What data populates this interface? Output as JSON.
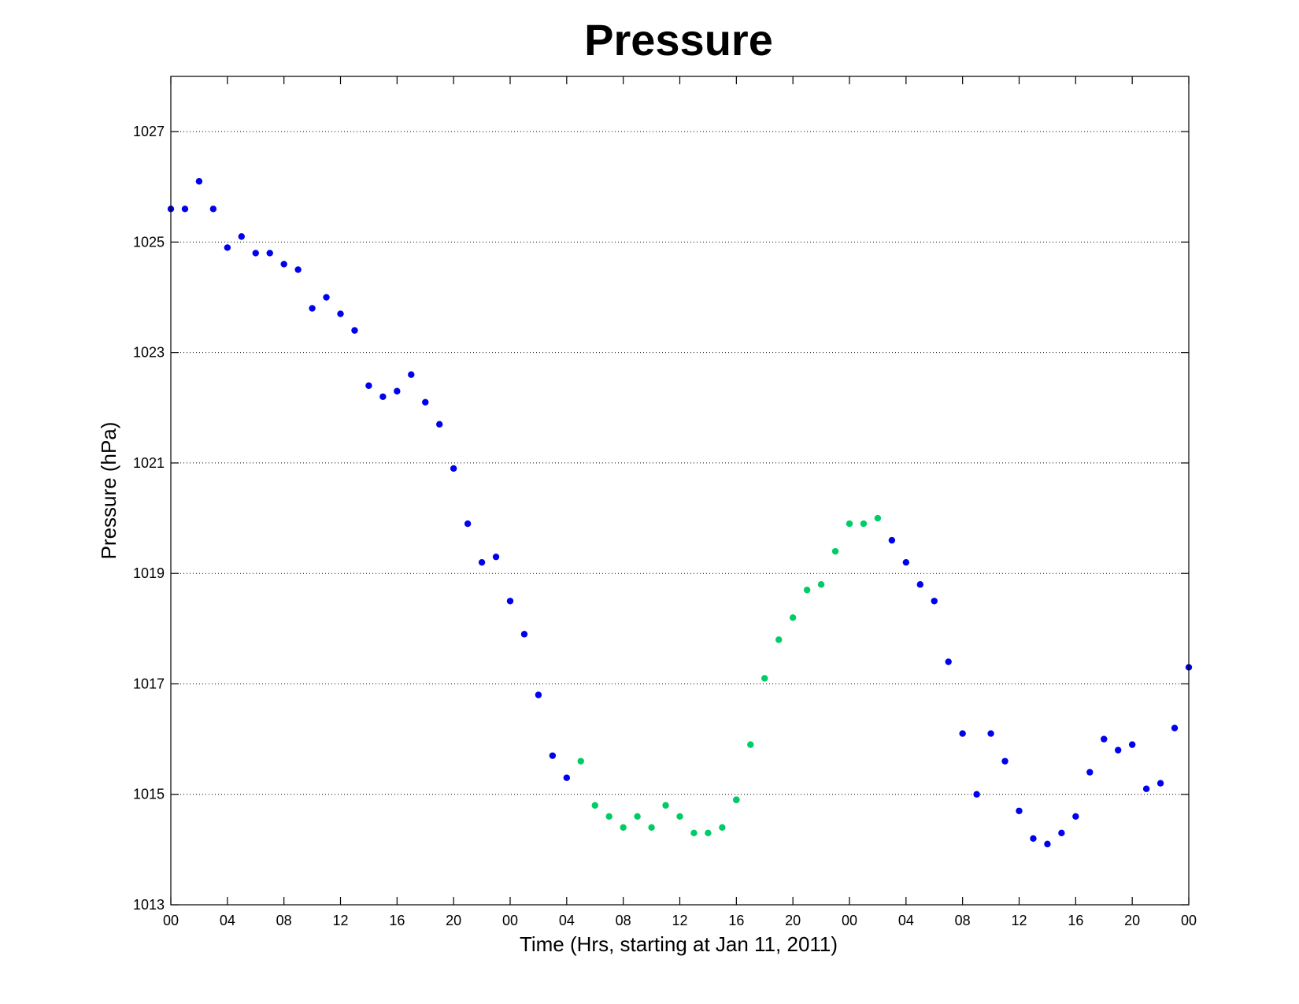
{
  "chart_data": {
    "type": "scatter",
    "title": "Pressure",
    "xlabel": "Time (Hrs, starting at Jan 11, 2011)",
    "ylabel": "Pressure (hPa)",
    "xlim": [
      0,
      72
    ],
    "ylim": [
      1013,
      1028
    ],
    "grid": "horizontal dotted",
    "x_tick_values": [
      0,
      4,
      8,
      12,
      16,
      20,
      24,
      28,
      32,
      36,
      40,
      44,
      48,
      52,
      56,
      60,
      64,
      68,
      72
    ],
    "x_tick_labels": [
      "00",
      "04",
      "08",
      "12",
      "16",
      "20",
      "00",
      "04",
      "08",
      "12",
      "16",
      "20",
      "00",
      "04",
      "08",
      "12",
      "16",
      "20",
      "00"
    ],
    "y_ticks": [
      1013,
      1015,
      1017,
      1019,
      1021,
      1023,
      1025,
      1027
    ],
    "colors": {
      "blue": "#0000ee",
      "green": "#00cc66"
    },
    "series": [
      {
        "color": "#0000ee",
        "points": [
          [
            0,
            1025.6
          ],
          [
            1,
            1025.6
          ],
          [
            2,
            1026.1
          ],
          [
            3,
            1025.6
          ],
          [
            4,
            1024.9
          ],
          [
            5,
            1025.1
          ],
          [
            6,
            1024.8
          ],
          [
            7,
            1024.8
          ],
          [
            8,
            1024.6
          ],
          [
            9,
            1024.5
          ],
          [
            10,
            1023.8
          ],
          [
            11,
            1024.0
          ],
          [
            12,
            1023.7
          ],
          [
            13,
            1023.4
          ],
          [
            14,
            1022.4
          ],
          [
            15,
            1022.2
          ],
          [
            16,
            1022.3
          ],
          [
            17,
            1022.6
          ],
          [
            18,
            1022.1
          ],
          [
            19,
            1021.7
          ],
          [
            20,
            1020.9
          ],
          [
            21,
            1019.9
          ],
          [
            22,
            1019.2
          ],
          [
            23,
            1019.3
          ],
          [
            24,
            1018.5
          ],
          [
            25,
            1017.9
          ],
          [
            26,
            1016.8
          ],
          [
            27,
            1015.7
          ],
          [
            28,
            1015.3
          ],
          [
            40,
            1014.9
          ],
          [
            51,
            1019.6
          ],
          [
            52,
            1019.2
          ],
          [
            53,
            1018.8
          ],
          [
            54,
            1018.5
          ],
          [
            55,
            1017.4
          ],
          [
            56,
            1016.1
          ],
          [
            57,
            1015.0
          ],
          [
            58,
            1016.1
          ],
          [
            59,
            1015.6
          ],
          [
            60,
            1014.7
          ],
          [
            61,
            1014.2
          ],
          [
            62,
            1014.1
          ],
          [
            63,
            1014.3
          ],
          [
            64,
            1014.6
          ],
          [
            65,
            1015.4
          ],
          [
            66,
            1016.0
          ],
          [
            67,
            1015.8
          ],
          [
            68,
            1015.9
          ],
          [
            69,
            1015.1
          ],
          [
            70,
            1015.2
          ],
          [
            71,
            1016.2
          ],
          [
            72,
            1017.3
          ]
        ]
      },
      {
        "color": "#00cc66",
        "points": [
          [
            29,
            1015.6
          ],
          [
            30,
            1014.8
          ],
          [
            31,
            1014.6
          ],
          [
            32,
            1014.4
          ],
          [
            33,
            1014.6
          ],
          [
            34,
            1014.4
          ],
          [
            35,
            1014.8
          ],
          [
            36,
            1014.6
          ],
          [
            37,
            1014.3
          ],
          [
            38,
            1014.3
          ],
          [
            39,
            1014.4
          ],
          [
            40,
            1014.9
          ],
          [
            41,
            1015.9
          ],
          [
            42,
            1017.1
          ],
          [
            43,
            1017.8
          ],
          [
            44,
            1018.2
          ],
          [
            45,
            1018.7
          ],
          [
            46,
            1018.8
          ],
          [
            47,
            1019.4
          ],
          [
            48,
            1019.9
          ],
          [
            49,
            1019.9
          ],
          [
            50,
            1020.0
          ]
        ]
      }
    ]
  }
}
